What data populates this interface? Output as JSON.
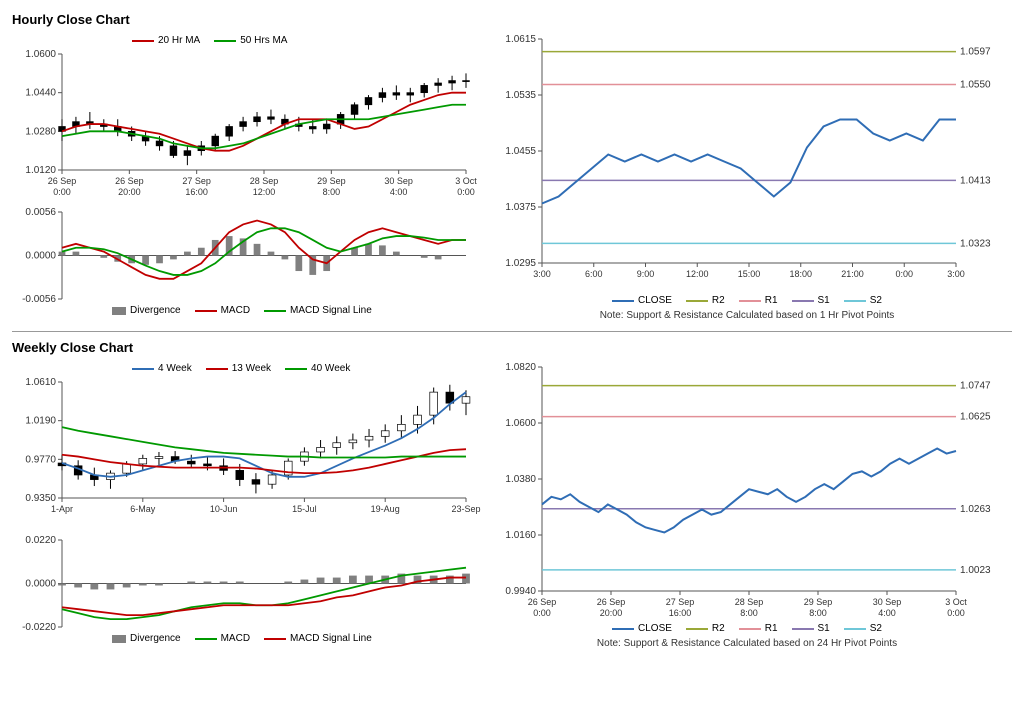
{
  "colors": {
    "red": "#c00000",
    "green": "#009900",
    "blue": "#2f6db5",
    "olive": "#9aa838",
    "pink": "#e29098",
    "violet": "#8978b0",
    "cyan": "#6fc7d8",
    "grey": "#808080",
    "axis": "#555",
    "text": "#333",
    "candle": "#000"
  },
  "hourly": {
    "title": "Hourly Close Chart",
    "top_legend": [
      {
        "label": "20 Hr MA",
        "color": "#c00000",
        "type": "line"
      },
      {
        "label": "50 Hrs MA",
        "color": "#009900",
        "type": "line"
      }
    ],
    "price": {
      "ylim": [
        1.012,
        1.06
      ],
      "yticks": [
        1.012,
        1.028,
        1.044,
        1.06
      ],
      "xticks": [
        "26 Sep 0:00",
        "26 Sep 20:00",
        "27 Sep 16:00",
        "28 Sep 12:00",
        "29 Sep 8:00",
        "30 Sep 4:00",
        "3 Oct 0:00"
      ],
      "ma20": [
        1.028,
        1.03,
        1.031,
        1.031,
        1.03,
        1.029,
        1.028,
        1.027,
        1.025,
        1.023,
        1.021,
        1.02,
        1.02,
        1.022,
        1.025,
        1.028,
        1.031,
        1.033,
        1.033,
        1.033,
        1.031,
        1.029,
        1.03,
        1.033,
        1.036,
        1.039,
        1.041,
        1.043,
        1.044,
        1.044
      ],
      "ma50": [
        1.026,
        1.027,
        1.028,
        1.028,
        1.028,
        1.027,
        1.026,
        1.025,
        1.023,
        1.022,
        1.021,
        1.021,
        1.022,
        1.023,
        1.025,
        1.027,
        1.029,
        1.031,
        1.032,
        1.033,
        1.033,
        1.033,
        1.033,
        1.034,
        1.035,
        1.036,
        1.037,
        1.038,
        1.039,
        1.039
      ],
      "candles": [
        [
          1.028,
          1.033,
          1.024,
          1.03
        ],
        [
          1.03,
          1.034,
          1.027,
          1.032
        ],
        [
          1.032,
          1.036,
          1.029,
          1.031
        ],
        [
          1.031,
          1.033,
          1.028,
          1.03
        ],
        [
          1.03,
          1.033,
          1.026,
          1.028
        ],
        [
          1.028,
          1.03,
          1.024,
          1.026
        ],
        [
          1.026,
          1.028,
          1.022,
          1.024
        ],
        [
          1.024,
          1.026,
          1.02,
          1.022
        ],
        [
          1.022,
          1.024,
          1.017,
          1.018
        ],
        [
          1.018,
          1.022,
          1.014,
          1.02
        ],
        [
          1.02,
          1.024,
          1.018,
          1.022
        ],
        [
          1.022,
          1.027,
          1.02,
          1.026
        ],
        [
          1.026,
          1.031,
          1.024,
          1.03
        ],
        [
          1.03,
          1.034,
          1.028,
          1.032
        ],
        [
          1.032,
          1.036,
          1.03,
          1.034
        ],
        [
          1.034,
          1.037,
          1.031,
          1.033
        ],
        [
          1.033,
          1.035,
          1.029,
          1.031
        ],
        [
          1.031,
          1.034,
          1.028,
          1.03
        ],
        [
          1.03,
          1.033,
          1.027,
          1.029
        ],
        [
          1.029,
          1.033,
          1.027,
          1.031
        ],
        [
          1.031,
          1.036,
          1.029,
          1.035
        ],
        [
          1.035,
          1.04,
          1.033,
          1.039
        ],
        [
          1.039,
          1.043,
          1.037,
          1.042
        ],
        [
          1.042,
          1.046,
          1.04,
          1.044
        ],
        [
          1.044,
          1.047,
          1.041,
          1.043
        ],
        [
          1.043,
          1.046,
          1.04,
          1.044
        ],
        [
          1.044,
          1.048,
          1.042,
          1.047
        ],
        [
          1.047,
          1.05,
          1.044,
          1.048
        ],
        [
          1.048,
          1.051,
          1.045,
          1.049
        ],
        [
          1.049,
          1.052,
          1.046,
          1.049
        ]
      ]
    },
    "macd": {
      "ylim": [
        -0.0056,
        0.0056
      ],
      "yticks": [
        -0.0056,
        0.0,
        0.0056
      ],
      "legend": [
        {
          "label": "Divergence",
          "color": "#808080",
          "type": "box"
        },
        {
          "label": "MACD",
          "color": "#c00000",
          "type": "line"
        },
        {
          "label": "MACD Signal Line",
          "color": "#009900",
          "type": "line"
        }
      ],
      "macd_line": [
        0.001,
        0.0015,
        0.001,
        0.0005,
        -0.0005,
        -0.0015,
        -0.0025,
        -0.003,
        -0.003,
        -0.002,
        -0.001,
        0.001,
        0.003,
        0.004,
        0.0045,
        0.004,
        0.003,
        0.001,
        -0.0005,
        -0.001,
        0.0005,
        0.002,
        0.003,
        0.0035,
        0.003,
        0.0025,
        0.002,
        0.0015,
        0.002,
        0.002
      ],
      "signal_line": [
        0.0005,
        0.001,
        0.001,
        0.0008,
        0.0003,
        -0.0005,
        -0.0013,
        -0.002,
        -0.0025,
        -0.0025,
        -0.002,
        -0.001,
        0.0005,
        0.0018,
        0.003,
        0.0035,
        0.0035,
        0.003,
        0.002,
        0.001,
        0.0005,
        0.001,
        0.0015,
        0.0022,
        0.0025,
        0.0025,
        0.0023,
        0.002,
        0.002,
        0.002
      ],
      "divergence": [
        0.0005,
        0.0005,
        0.0,
        -0.0003,
        -0.0008,
        -0.001,
        -0.0012,
        -0.001,
        -0.0005,
        0.0005,
        0.001,
        0.002,
        0.0025,
        0.0022,
        0.0015,
        0.0005,
        -0.0005,
        -0.002,
        -0.0025,
        -0.002,
        0.0,
        0.001,
        0.0015,
        0.0013,
        0.0005,
        0.0,
        -0.0003,
        -0.0005,
        0.0,
        0.0
      ]
    },
    "sr": {
      "ylim": [
        1.0295,
        1.0615
      ],
      "yticks": [
        1.0295,
        1.0375,
        1.0455,
        1.0535,
        1.0615
      ],
      "xticks": [
        "3:00",
        "6:00",
        "9:00",
        "12:00",
        "15:00",
        "18:00",
        "21:00",
        "0:00",
        "3:00"
      ],
      "levels": [
        {
          "label": "1.0597",
          "value": 1.0597,
          "color": "#9aa838",
          "name": "R2"
        },
        {
          "label": "1.0550",
          "value": 1.055,
          "color": "#e29098",
          "name": "R1"
        },
        {
          "label": "1.0413",
          "value": 1.0413,
          "color": "#8978b0",
          "name": "S1"
        },
        {
          "label": "1.0323",
          "value": 1.0323,
          "color": "#6fc7d8",
          "name": "S2"
        }
      ],
      "close": [
        1.038,
        1.039,
        1.041,
        1.043,
        1.045,
        1.044,
        1.045,
        1.044,
        1.045,
        1.044,
        1.045,
        1.044,
        1.043,
        1.041,
        1.039,
        1.041,
        1.046,
        1.049,
        1.05,
        1.05,
        1.048,
        1.047,
        1.048,
        1.047,
        1.05,
        1.05
      ],
      "legend": [
        {
          "label": "CLOSE",
          "color": "#2f6db5",
          "type": "line"
        },
        {
          "label": "R2",
          "color": "#9aa838",
          "type": "line"
        },
        {
          "label": "R1",
          "color": "#e29098",
          "type": "line"
        },
        {
          "label": "S1",
          "color": "#8978b0",
          "type": "line"
        },
        {
          "label": "S2",
          "color": "#6fc7d8",
          "type": "line"
        }
      ],
      "note": "Note: Support & Resistance Calculated based on 1 Hr Pivot Points"
    }
  },
  "weekly": {
    "title": "Weekly Close Chart",
    "top_legend": [
      {
        "label": "4 Week",
        "color": "#2f6db5",
        "type": "line"
      },
      {
        "label": "13 Week",
        "color": "#c00000",
        "type": "line"
      },
      {
        "label": "40 Week",
        "color": "#009900",
        "type": "line"
      }
    ],
    "price": {
      "ylim": [
        0.935,
        1.061
      ],
      "yticks": [
        0.935,
        0.977,
        1.019,
        1.061
      ],
      "xticks": [
        "1-Apr",
        "6-May",
        "10-Jun",
        "15-Jul",
        "19-Aug",
        "23-Sep"
      ],
      "w4": [
        0.973,
        0.967,
        0.96,
        0.958,
        0.96,
        0.965,
        0.97,
        0.975,
        0.978,
        0.98,
        0.98,
        0.978,
        0.97,
        0.962,
        0.958,
        0.958,
        0.962,
        0.97,
        0.978,
        0.985,
        0.992,
        1.0,
        1.01,
        1.022,
        1.037,
        1.05
      ],
      "w13": [
        0.982,
        0.98,
        0.977,
        0.974,
        0.972,
        0.97,
        0.969,
        0.968,
        0.968,
        0.968,
        0.968,
        0.968,
        0.967,
        0.965,
        0.963,
        0.962,
        0.962,
        0.963,
        0.965,
        0.968,
        0.972,
        0.976,
        0.98,
        0.984,
        0.987,
        0.988
      ],
      "w40": [
        1.012,
        1.008,
        1.005,
        1.002,
        0.999,
        0.996,
        0.993,
        0.99,
        0.988,
        0.986,
        0.984,
        0.983,
        0.982,
        0.981,
        0.98,
        0.98,
        0.979,
        0.979,
        0.979,
        0.979,
        0.979,
        0.98,
        0.98,
        0.98,
        0.98,
        0.98
      ],
      "candles": [
        [
          0.973,
          0.982,
          0.965,
          0.97
        ],
        [
          0.97,
          0.976,
          0.955,
          0.96
        ],
        [
          0.96,
          0.968,
          0.948,
          0.955
        ],
        [
          0.955,
          0.965,
          0.945,
          0.962
        ],
        [
          0.962,
          0.975,
          0.958,
          0.972
        ],
        [
          0.972,
          0.982,
          0.965,
          0.978
        ],
        [
          0.978,
          0.985,
          0.97,
          0.98
        ],
        [
          0.98,
          0.986,
          0.972,
          0.975
        ],
        [
          0.975,
          0.982,
          0.968,
          0.972
        ],
        [
          0.972,
          0.98,
          0.965,
          0.97
        ],
        [
          0.97,
          0.978,
          0.96,
          0.965
        ],
        [
          0.965,
          0.972,
          0.948,
          0.955
        ],
        [
          0.955,
          0.962,
          0.94,
          0.95
        ],
        [
          0.95,
          0.965,
          0.945,
          0.96
        ],
        [
          0.96,
          0.978,
          0.955,
          0.975
        ],
        [
          0.975,
          0.99,
          0.97,
          0.985
        ],
        [
          0.985,
          0.998,
          0.978,
          0.99
        ],
        [
          0.99,
          1.002,
          0.982,
          0.995
        ],
        [
          0.995,
          1.005,
          0.988,
          0.998
        ],
        [
          0.998,
          1.01,
          0.99,
          1.002
        ],
        [
          1.002,
          1.015,
          0.995,
          1.008
        ],
        [
          1.008,
          1.025,
          1.0,
          1.015
        ],
        [
          1.015,
          1.035,
          1.005,
          1.025
        ],
        [
          1.025,
          1.055,
          1.015,
          1.05
        ],
        [
          1.05,
          1.058,
          1.03,
          1.038
        ],
        [
          1.038,
          1.052,
          1.025,
          1.045
        ]
      ]
    },
    "macd": {
      "ylim": [
        -0.022,
        0.022
      ],
      "yticks": [
        -0.022,
        0.0,
        0.022
      ],
      "legend": [
        {
          "label": "Divergence",
          "color": "#808080",
          "type": "box"
        },
        {
          "label": "MACD",
          "color": "#009900",
          "type": "line"
        },
        {
          "label": "MACD Signal Line",
          "color": "#c00000",
          "type": "line"
        }
      ],
      "macd_line": [
        -0.013,
        -0.015,
        -0.017,
        -0.018,
        -0.018,
        -0.017,
        -0.016,
        -0.014,
        -0.012,
        -0.011,
        -0.01,
        -0.01,
        -0.011,
        -0.011,
        -0.01,
        -0.008,
        -0.006,
        -0.004,
        -0.002,
        0.0,
        0.002,
        0.004,
        0.005,
        0.006,
        0.007,
        0.008
      ],
      "signal_line": [
        -0.012,
        -0.013,
        -0.014,
        -0.015,
        -0.016,
        -0.016,
        -0.015,
        -0.014,
        -0.013,
        -0.012,
        -0.011,
        -0.011,
        -0.011,
        -0.011,
        -0.011,
        -0.01,
        -0.009,
        -0.007,
        -0.006,
        -0.004,
        -0.002,
        -0.001,
        0.001,
        0.002,
        0.003,
        0.003
      ],
      "divergence": [
        -0.001,
        -0.002,
        -0.003,
        -0.003,
        -0.002,
        -0.001,
        -0.001,
        0.0,
        0.001,
        0.001,
        0.001,
        0.001,
        0.0,
        0.0,
        0.001,
        0.002,
        0.003,
        0.003,
        0.004,
        0.004,
        0.004,
        0.005,
        0.004,
        0.004,
        0.004,
        0.005
      ]
    },
    "sr": {
      "ylim": [
        0.994,
        1.082
      ],
      "yticks": [
        0.994,
        1.016,
        1.038,
        1.06,
        1.082
      ],
      "xticks": [
        "26 Sep 0:00",
        "26 Sep 20:00",
        "27 Sep 16:00",
        "28 Sep 8:00",
        "29 Sep 8:00",
        "30 Sep 4:00",
        "3 Oct 0:00"
      ],
      "levels": [
        {
          "label": "1.0747",
          "value": 1.0747,
          "color": "#9aa838",
          "name": "R2"
        },
        {
          "label": "1.0625",
          "value": 1.0625,
          "color": "#e29098",
          "name": "R1"
        },
        {
          "label": "1.0263",
          "value": 1.0263,
          "color": "#8978b0",
          "name": "S1"
        },
        {
          "label": "1.0023",
          "value": 1.0023,
          "color": "#6fc7d8",
          "name": "S2"
        }
      ],
      "close": [
        1.028,
        1.031,
        1.03,
        1.032,
        1.029,
        1.027,
        1.025,
        1.028,
        1.026,
        1.024,
        1.021,
        1.019,
        1.018,
        1.017,
        1.019,
        1.022,
        1.024,
        1.026,
        1.024,
        1.025,
        1.028,
        1.031,
        1.034,
        1.033,
        1.032,
        1.034,
        1.031,
        1.029,
        1.031,
        1.034,
        1.036,
        1.034,
        1.037,
        1.04,
        1.041,
        1.039,
        1.041,
        1.044,
        1.046,
        1.044,
        1.046,
        1.048,
        1.05,
        1.048,
        1.049
      ],
      "legend": [
        {
          "label": "CLOSE",
          "color": "#2f6db5",
          "type": "line"
        },
        {
          "label": "R2",
          "color": "#9aa838",
          "type": "line"
        },
        {
          "label": "R1",
          "color": "#e29098",
          "type": "line"
        },
        {
          "label": "S1",
          "color": "#8978b0",
          "type": "line"
        },
        {
          "label": "S2",
          "color": "#6fc7d8",
          "type": "line"
        }
      ],
      "note": "Note: Support & Resistance Calculated based on 24 Hr Pivot Points"
    }
  }
}
